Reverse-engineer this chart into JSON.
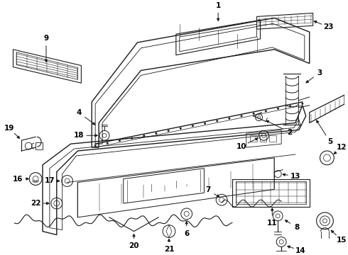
{
  "background_color": "#ffffff",
  "line_color": "#1a1a1a",
  "text_color": "#000000",
  "fig_width": 4.9,
  "fig_height": 3.6,
  "dpi": 100
}
